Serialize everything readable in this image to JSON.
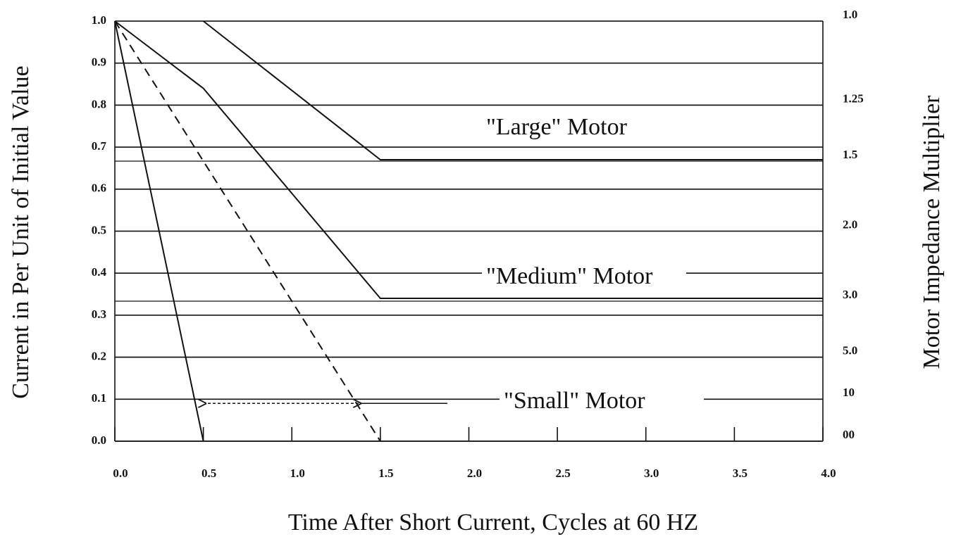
{
  "chart_data": {
    "type": "line",
    "xlabel": "Time After Short Current, Cycles at 60 HZ",
    "ylabel": "Current in Per Unit of Initial Value",
    "y2label": "Motor Impedance Multiplier",
    "xlim": [
      0,
      4
    ],
    "xticks": [
      {
        "value": 0,
        "label": "0.0"
      },
      0.5,
      {
        "value": 1,
        "label": "1.0"
      },
      1.5,
      {
        "value": 2,
        "label": "2.0"
      },
      2.5,
      {
        "value": 3,
        "label": "3.0"
      },
      3.5,
      {
        "value": 4,
        "label": "4.0"
      }
    ],
    "ylim": [
      0,
      1
    ],
    "yticks": [
      {
        "value": 0,
        "label": "0.0"
      },
      0.1,
      0.2,
      0.3,
      0.4,
      0.5,
      0.6,
      0.7,
      0.8,
      0.9,
      {
        "value": 1,
        "label": "1.0"
      }
    ],
    "y2scale": "reciprocal",
    "y2ticks": [
      {
        "value": 1,
        "label": "1.0"
      },
      1.25,
      1.5,
      {
        "value": 2,
        "label": "2.0"
      },
      {
        "value": 3,
        "label": "3.0"
      },
      {
        "value": 5,
        "label": "5.0"
      },
      10,
      {
        "value": null,
        "label": "00"
      }
    ],
    "grid": true,
    "series": [
      {
        "name": "\"Large\" Motor",
        "color": "#111111",
        "dash": false,
        "x": [
          0.5,
          1.5,
          4.0
        ],
        "values": [
          1.0,
          0.67,
          0.67
        ]
      },
      {
        "name": "\"Medium\" Motor",
        "color": "#111111",
        "dash": false,
        "x": [
          0,
          0.5,
          1.5,
          4.0
        ],
        "values": [
          1.0,
          0.84,
          0.34,
          0.34
        ]
      },
      {
        "name": "\"Small\" Motor",
        "color": "#111111",
        "dash": false,
        "x": [
          0,
          0.5
        ],
        "values": [
          1.0,
          0.0
        ]
      },
      {
        "color": "#111111",
        "dash": true,
        "x": [
          0,
          1.5
        ],
        "values": [
          1.0,
          0.0
        ]
      }
    ]
  }
}
